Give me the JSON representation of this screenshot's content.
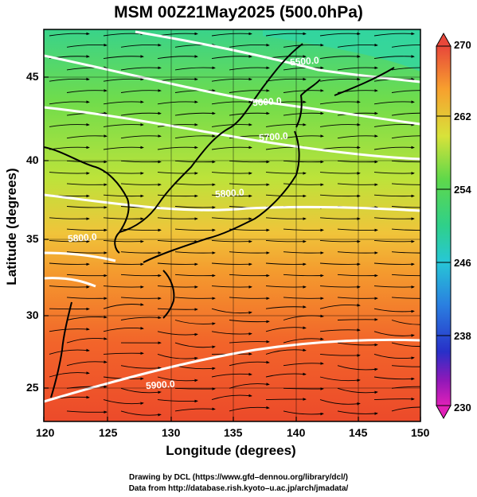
{
  "title": "MSM 00Z21May2025 (500.0hPa)",
  "xlabel": "Longitude (degrees)",
  "ylabel": "Latitude  (degrees)",
  "x_ticks": [
    "120",
    "125",
    "130",
    "135",
    "140",
    "145",
    "150"
  ],
  "y_ticks": [
    "25",
    "30",
    "35",
    "40",
    "45"
  ],
  "colorbar_ticks": [
    "270",
    "262",
    "254",
    "246",
    "238",
    "230"
  ],
  "contours": [
    {
      "label": "5500.0",
      "lon": 141,
      "lat": 45.7
    },
    {
      "label": "5600.0",
      "lon": 138,
      "lat": 43.1
    },
    {
      "label": "5700.0",
      "lon": 138.5,
      "lat": 40.8
    },
    {
      "label": "5800.0",
      "lon": 135,
      "lat": 37.2
    },
    {
      "label": "5800.0",
      "lon": 123.3,
      "lat": 34.3
    },
    {
      "label": "5900.0",
      "lon": 129.5,
      "lat": 24.8
    }
  ],
  "credits": [
    "Drawing by DCL (https://www.gfd–dennou.org/library/dcl/)",
    "Data from http://database.rish.kyoto–u.ac.jp/arch/jmadata/"
  ],
  "chart_data": {
    "type": "heatmap",
    "title": "MSM 00Z21May2025 (500.0hPa)",
    "xlabel": "Longitude (degrees)",
    "ylabel": "Latitude  (degrees)",
    "xlim": [
      120,
      150
    ],
    "ylim": [
      22.5,
      47.8
    ],
    "colorbar": {
      "range": [
        230,
        270
      ],
      "ticks": [
        270,
        262,
        254,
        246,
        238,
        230
      ],
      "extend": "both"
    },
    "temperature_field_approx": [
      {
        "lat": 47,
        "values": [
          258,
          259,
          259,
          258,
          256,
          254,
          253
        ]
      },
      {
        "lat": 42,
        "values": [
          258,
          260,
          261,
          260,
          259,
          258,
          258
        ]
      },
      {
        "lat": 37,
        "values": [
          262,
          262,
          262,
          261,
          260,
          260,
          260
        ]
      },
      {
        "lat": 33,
        "values": [
          266,
          266,
          266,
          265,
          264,
          263,
          262
        ]
      },
      {
        "lat": 28,
        "values": [
          267,
          267,
          267,
          267,
          266,
          266,
          265
        ]
      },
      {
        "lat": 24,
        "values": [
          268,
          268,
          268,
          268,
          268,
          267,
          267
        ]
      }
    ],
    "geopotential_contours_m": [
      5500,
      5600,
      5700,
      5800,
      5900
    ]
  }
}
